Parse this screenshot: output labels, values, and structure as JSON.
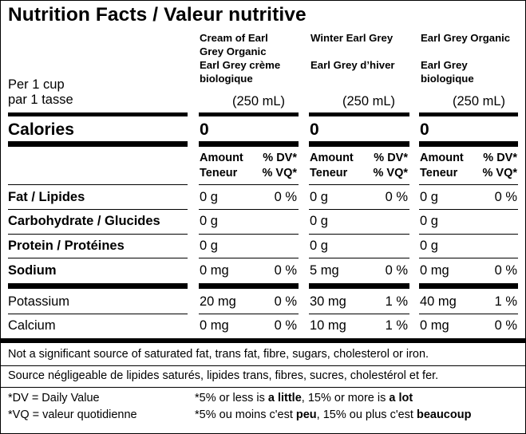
{
  "title": "Nutrition Facts / Valeur nutritive",
  "serving": {
    "line1": "Per 1 cup",
    "line2": "par 1 tasse"
  },
  "products": [
    {
      "name_lines": [
        "Cream of Earl",
        "Grey Organic",
        "Earl Grey crème",
        "biologique"
      ],
      "size": "(250 mL)",
      "calories": "0",
      "values": {
        "fat": {
          "amount": "0 g",
          "dv": "0 %"
        },
        "carb": {
          "amount": "0 g",
          "dv": ""
        },
        "protein": {
          "amount": "0 g",
          "dv": ""
        },
        "sodium": {
          "amount": "0 mg",
          "dv": "0 %"
        },
        "potassium": {
          "amount": "20 mg",
          "dv": "0 %"
        },
        "calcium": {
          "amount": "0 mg",
          "dv": "0 %"
        }
      }
    },
    {
      "name_lines": [
        "Winter Earl Grey",
        "",
        "Earl Grey d’hiver",
        ""
      ],
      "size": "(250 mL)",
      "calories": "0",
      "values": {
        "fat": {
          "amount": "0 g",
          "dv": "0 %"
        },
        "carb": {
          "amount": "0 g",
          "dv": ""
        },
        "protein": {
          "amount": "0 g",
          "dv": ""
        },
        "sodium": {
          "amount": "5 mg",
          "dv": "0 %"
        },
        "potassium": {
          "amount": "30 mg",
          "dv": "1 %"
        },
        "calcium": {
          "amount": "10 mg",
          "dv": "1 %"
        }
      }
    },
    {
      "name_lines": [
        "Earl Grey Organic",
        "",
        "Earl Grey",
        "biologique"
      ],
      "size": "(250 mL)",
      "calories": "0",
      "values": {
        "fat": {
          "amount": "0 g",
          "dv": "0 %"
        },
        "carb": {
          "amount": "0 g",
          "dv": ""
        },
        "protein": {
          "amount": "0 g",
          "dv": ""
        },
        "sodium": {
          "amount": "0 mg",
          "dv": "0 %"
        },
        "potassium": {
          "amount": "40 mg",
          "dv": "1 %"
        },
        "calcium": {
          "amount": "0 mg",
          "dv": "0 %"
        }
      }
    }
  ],
  "calories_label": "Calories",
  "col_header": {
    "amount": "Amount",
    "teneur": "Teneur",
    "dv": "% DV*",
    "vq": "% VQ*"
  },
  "nutrients": {
    "fat": "Fat / Lipides",
    "carb": "Carbohydrate / Glucides",
    "protein": "Protein / Protéines",
    "sodium": "Sodium",
    "potassium": "Potassium",
    "calcium": "Calcium"
  },
  "footnotes": {
    "not_significant_en": "Not a significant source of saturated fat, trans fat, fibre, sugars, cholesterol or iron.",
    "not_significant_fr": "Source négligeable de lipides saturés, lipides trans, fibres, sucres, cholestérol et fer.",
    "dv_def": "*DV = Daily Value",
    "vq_def": "*VQ = valeur quotidienne",
    "en_pre": "*5% or less is ",
    "en_little": "a little",
    "en_mid": ", 15% or more is ",
    "en_lot": "a lot",
    "fr_pre": "*5% ou moins c'est ",
    "fr_peu": "peu",
    "fr_mid": ", 15% ou plus c'est ",
    "fr_beaucoup": "beaucoup"
  }
}
